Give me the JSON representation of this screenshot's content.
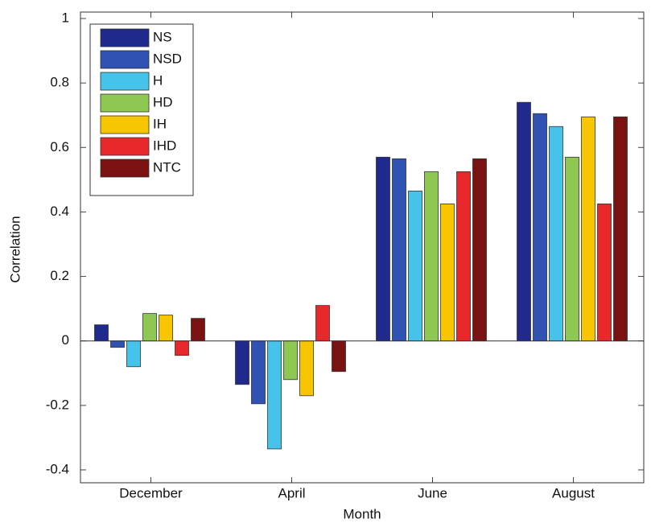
{
  "chart_data": {
    "type": "bar",
    "x_label": "Month",
    "y_label": "Correlation",
    "categories": [
      "December",
      "April",
      "June",
      "August"
    ],
    "series": [
      {
        "name": "NS",
        "color": "#1f2a8c",
        "values": [
          0.05,
          -0.135,
          0.57,
          0.74
        ]
      },
      {
        "name": "NSD",
        "color": "#3052b2",
        "values": [
          -0.02,
          -0.195,
          0.565,
          0.705
        ]
      },
      {
        "name": "H",
        "color": "#45c3ea",
        "values": [
          -0.08,
          -0.335,
          0.465,
          0.665
        ]
      },
      {
        "name": "HD",
        "color": "#8ec852",
        "values": [
          0.085,
          -0.12,
          0.525,
          0.57
        ]
      },
      {
        "name": "IH",
        "color": "#f8c600",
        "values": [
          0.08,
          -0.17,
          0.425,
          0.695
        ]
      },
      {
        "name": "IHD",
        "color": "#e8282a",
        "values": [
          -0.045,
          0.11,
          0.525,
          0.425
        ]
      },
      {
        "name": "NTC",
        "color": "#7a1212",
        "values": [
          0.07,
          -0.095,
          0.565,
          0.695
        ]
      }
    ],
    "ylim": [
      -0.44,
      1.02
    ],
    "yticks": [
      -0.4,
      -0.2,
      0,
      0.2,
      0.4,
      0.6,
      0.8,
      1
    ],
    "grid": false,
    "legend": "upper-left"
  }
}
